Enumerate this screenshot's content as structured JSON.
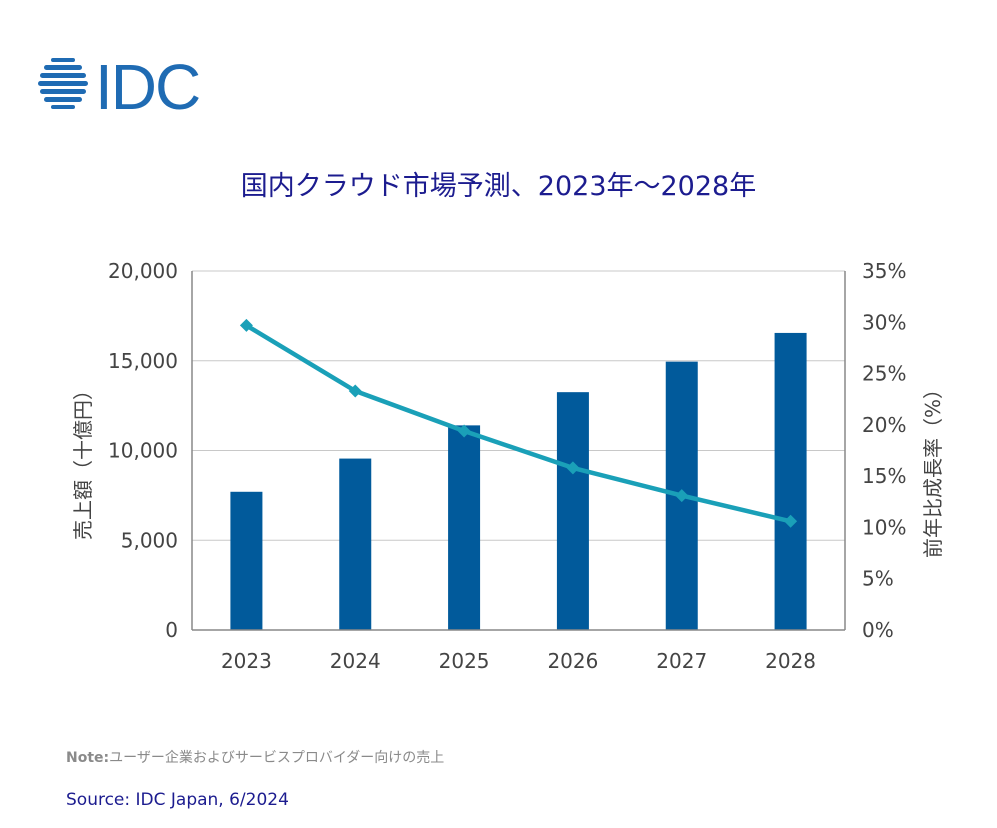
{
  "logo": {
    "text": "IDC"
  },
  "title": "国内クラウド市場予測、2023年～2028年",
  "chart_data": {
    "type": "bar",
    "categories": [
      "2023",
      "2024",
      "2025",
      "2026",
      "2027",
      "2028"
    ],
    "series": [
      {
        "name": "売上額",
        "type": "bar",
        "axis": "left",
        "values": [
          7700,
          9550,
          11400,
          13250,
          14950,
          16550
        ],
        "color": "#015a9b"
      },
      {
        "name": "前年比成長率",
        "type": "line",
        "axis": "right",
        "values": [
          29.7,
          23.3,
          19.4,
          15.8,
          13.1,
          10.6
        ],
        "color": "#1aa0b8"
      }
    ],
    "y_left": {
      "label": "売上額（十億円）",
      "ylim": [
        0,
        20000
      ],
      "ticks": [
        "0",
        "5,000",
        "10,000",
        "15,000",
        "20,000"
      ]
    },
    "y_right": {
      "label": "前年比成長率（%）",
      "ylim": [
        0,
        35
      ],
      "ticks": [
        "0%",
        "5%",
        "10%",
        "15%",
        "20%",
        "25%",
        "30%",
        "35%"
      ]
    },
    "grid": true,
    "legend": "none"
  },
  "note": {
    "label": "Note:",
    "text": "ユーザー企業およびサービスプロバイダー向けの売上"
  },
  "source": "Source: IDC Japan, 6/2024"
}
